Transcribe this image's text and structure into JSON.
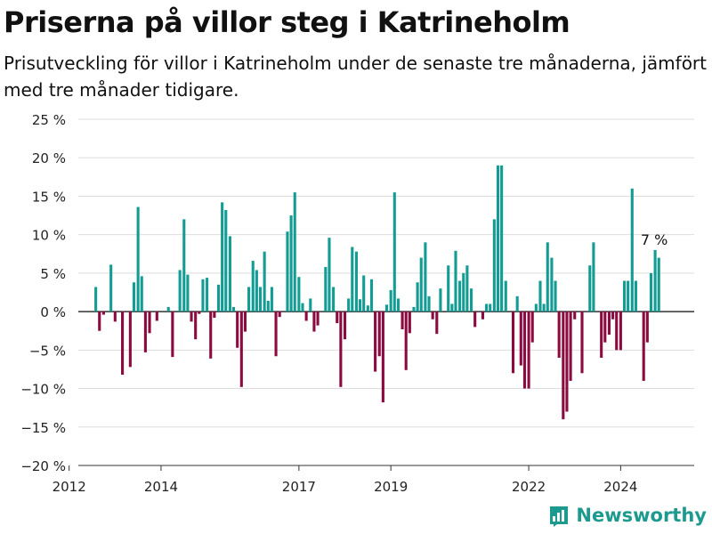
{
  "header": {
    "title": "Priserna på villor steg i Katrineholm",
    "subtitle": "Prisutveckling för villor i Katrineholm under de senaste tre månaderna, jämfört med tre månader tidigare."
  },
  "brand": {
    "name": "Newsworthy",
    "icon": "bar-chart-logo-icon"
  },
  "colors": {
    "positive": "#139c94",
    "negative": "#8b0b40",
    "grid": "#dddddd",
    "axis": "#333333",
    "logo": "#1d9a8f"
  },
  "chart_data": {
    "type": "bar",
    "ylim": [
      -20,
      25
    ],
    "yticks": [
      -20,
      -15,
      -10,
      -5,
      0,
      5,
      10,
      15,
      20,
      25
    ],
    "ytick_labels": [
      "−20 %",
      "−15 %",
      "−10 %",
      "−5 %",
      "0 %",
      "5 %",
      "10 %",
      "15 %",
      "20 %",
      "25 %"
    ],
    "xlim": [
      2012.2,
      2025.6
    ],
    "xticks": [
      2012,
      2014,
      2017,
      2019,
      2022,
      2024
    ],
    "xtick_labels": [
      "2012",
      "2014",
      "2017",
      "2019",
      "2022",
      "2024"
    ],
    "grid": true,
    "annotation": {
      "text": "7 %",
      "x": 2024.75,
      "y": 8
    },
    "x": [
      2012.58,
      2012.66,
      2012.75,
      2012.83,
      2012.91,
      2013.0,
      2013.08,
      2013.16,
      2013.25,
      2013.33,
      2013.41,
      2013.5,
      2013.58,
      2013.66,
      2013.75,
      2013.83,
      2013.91,
      2014.0,
      2014.08,
      2014.16,
      2014.25,
      2014.33,
      2014.41,
      2014.5,
      2014.58,
      2014.66,
      2014.75,
      2014.83,
      2014.91,
      2015.0,
      2015.08,
      2015.16,
      2015.25,
      2015.33,
      2015.41,
      2015.5,
      2015.58,
      2015.66,
      2015.75,
      2015.83,
      2015.91,
      2016.0,
      2016.08,
      2016.16,
      2016.25,
      2016.33,
      2016.41,
      2016.5,
      2016.58,
      2016.66,
      2016.75,
      2016.83,
      2016.91,
      2017.0,
      2017.08,
      2017.16,
      2017.25,
      2017.33,
      2017.41,
      2017.5,
      2017.58,
      2017.66,
      2017.75,
      2017.83,
      2017.91,
      2018.0,
      2018.08,
      2018.16,
      2018.25,
      2018.33,
      2018.41,
      2018.5,
      2018.58,
      2018.66,
      2018.75,
      2018.83,
      2018.91,
      2019.0,
      2019.08,
      2019.16,
      2019.25,
      2019.33,
      2019.41,
      2019.5,
      2019.58,
      2019.66,
      2019.75,
      2019.83,
      2019.91,
      2020.0,
      2020.08,
      2020.16,
      2020.25,
      2020.33,
      2020.41,
      2020.5,
      2020.58,
      2020.66,
      2020.75,
      2020.83,
      2020.91,
      2021.0,
      2021.08,
      2021.16,
      2021.25,
      2021.33,
      2021.41,
      2021.5,
      2021.58,
      2021.66,
      2021.75,
      2021.83,
      2021.91,
      2022.0,
      2022.08,
      2022.16,
      2022.25,
      2022.33,
      2022.41,
      2022.5,
      2022.58,
      2022.66,
      2022.75,
      2022.83,
      2022.91,
      2023.0,
      2023.08,
      2023.16,
      2023.25,
      2023.33,
      2023.41,
      2023.5,
      2023.58,
      2023.66,
      2023.75,
      2023.83,
      2023.91,
      2024.0,
      2024.08,
      2024.16,
      2024.25,
      2024.33,
      2024.41,
      2024.5,
      2024.58,
      2024.66,
      2024.75,
      2024.83
    ],
    "values": [
      3.2,
      -2.5,
      -0.4,
      0,
      6.1,
      -1.3,
      0,
      -8.2,
      0,
      -7.2,
      3.8,
      13.6,
      4.6,
      -5.3,
      -2.8,
      0,
      -1.2,
      0,
      0,
      0.6,
      -5.9,
      0,
      5.4,
      12.0,
      4.8,
      -1.3,
      -3.6,
      -0.3,
      4.2,
      4.4,
      -6.1,
      -0.8,
      3.5,
      14.2,
      13.2,
      9.8,
      0.6,
      -4.7,
      -9.8,
      -2.6,
      3.2,
      6.6,
      5.4,
      3.2,
      7.8,
      1.4,
      3.2,
      -5.8,
      -0.7,
      0,
      10.4,
      12.5,
      15.5,
      4.5,
      1.1,
      -1.2,
      1.7,
      -2.6,
      -1.8,
      0,
      5.8,
      9.6,
      3.2,
      -1.5,
      -9.8,
      -3.6,
      1.7,
      8.4,
      7.8,
      1.6,
      4.7,
      0.8,
      4.2,
      -7.8,
      -5.8,
      -11.8,
      0.9,
      2.8,
      15.5,
      1.7,
      -2.3,
      -7.6,
      -2.8,
      0.6,
      3.8,
      7.0,
      9.0,
      2.0,
      -1.0,
      -2.9,
      3.0,
      0,
      6.0,
      1.0,
      7.9,
      4.0,
      5.0,
      6.0,
      3.0,
      -2.0,
      0,
      -1.0,
      1.0,
      1.0,
      12.0,
      19.0,
      19.0,
      4.0,
      0,
      -8.0,
      2.0,
      -7.0,
      -10.0,
      -10.0,
      -4.0,
      1.0,
      4.0,
      1.0,
      9.0,
      7.0,
      4.0,
      -6.0,
      -14.0,
      -13.0,
      -9.0,
      -1.0,
      0,
      -8.0,
      0,
      6.0,
      9.0,
      0,
      -6.0,
      -4.0,
      -3.0,
      -1.0,
      -5.0,
      -5.0,
      4.0,
      4.0,
      16.0,
      4.0,
      0,
      -9.0,
      -4.0,
      5.0,
      8.0,
      7.0
    ]
  }
}
